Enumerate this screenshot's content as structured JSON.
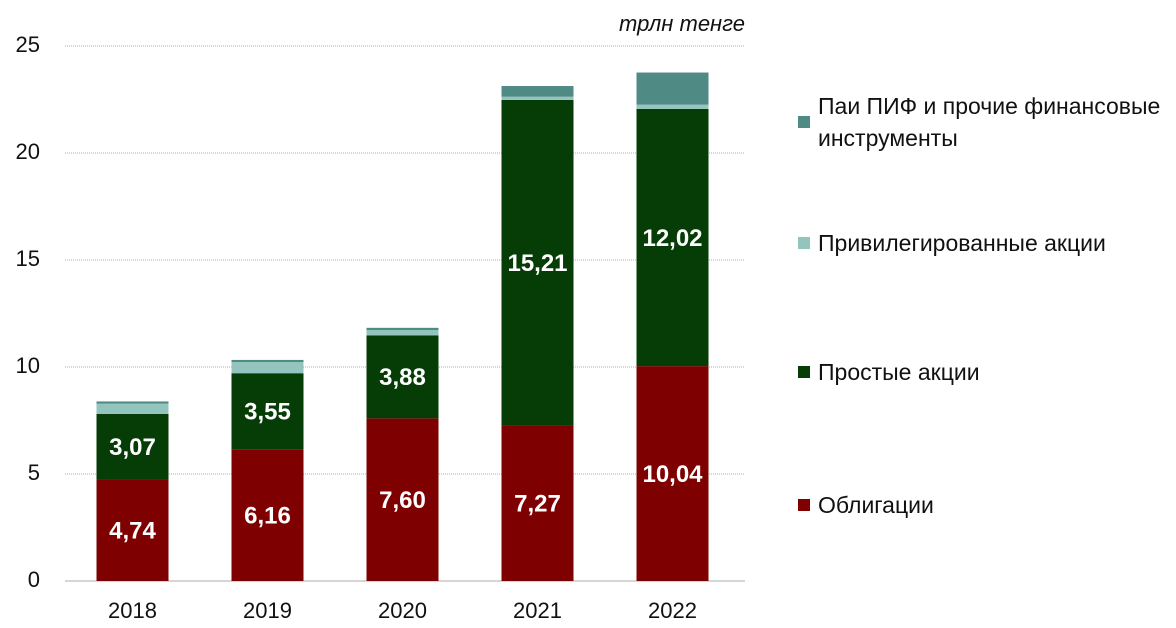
{
  "chart_data": {
    "type": "stacked_bar",
    "unit_label": "трлн тенге",
    "categories": [
      "2018",
      "2019",
      "2020",
      "2021",
      "2022"
    ],
    "series": [
      {
        "name": "Облигации",
        "color": "#7f0000",
        "values": [
          4.74,
          6.16,
          7.6,
          7.27,
          10.04
        ],
        "value_labels": [
          "4,74",
          "6,16",
          "7,60",
          "7,27",
          "10,04"
        ]
      },
      {
        "name": "Простые акции",
        "color": "#063d06",
        "values": [
          3.07,
          3.55,
          3.88,
          15.21,
          12.02
        ],
        "value_labels": [
          "3,07",
          "3,55",
          "3,88",
          "15,21",
          "12,02"
        ]
      },
      {
        "name": "Привилегированные акции",
        "color": "#93c4bd",
        "values": [
          0.48,
          0.52,
          0.25,
          0.15,
          0.2
        ]
      },
      {
        "name": "Паи ПИФ и прочие финансовые инструменты",
        "color": "#4f8a84",
        "values": [
          0.1,
          0.1,
          0.1,
          0.5,
          1.5
        ]
      }
    ],
    "ylim": [
      0,
      25
    ],
    "yticks": [
      0,
      5,
      10,
      15,
      20,
      25
    ],
    "grid": true
  }
}
